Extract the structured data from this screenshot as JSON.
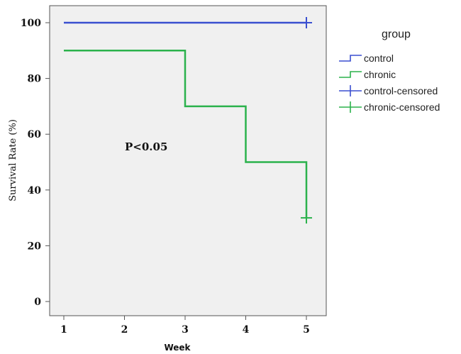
{
  "chart_data": {
    "type": "line",
    "subtype": "kaplan-meier",
    "title": "",
    "xlabel": "Week",
    "ylabel": "Survival Rate (%)",
    "xlim": [
      1,
      5
    ],
    "ylim": [
      0,
      100
    ],
    "x_ticks": [
      "1",
      "2",
      "3",
      "4",
      "5"
    ],
    "y_ticks": [
      "0",
      "20",
      "40",
      "60",
      "80",
      "100"
    ],
    "grid": false,
    "legend_position": "right",
    "legend_title": "group",
    "legend_items": [
      "control",
      "chronic",
      "control-censored",
      "chronic-censored"
    ],
    "annotation": "P<0.05",
    "colors": {
      "control": "#3a4fd0",
      "chronic": "#2bb24c",
      "plot_bg": "#f0f0f0"
    },
    "series": [
      {
        "name": "control",
        "steps": [
          [
            1,
            100
          ],
          [
            5,
            100
          ]
        ],
        "censored": [
          [
            5,
            100
          ]
        ]
      },
      {
        "name": "chronic",
        "steps": [
          [
            1,
            90
          ],
          [
            3,
            90
          ],
          [
            3,
            70
          ],
          [
            4,
            70
          ],
          [
            4,
            50
          ],
          [
            5,
            50
          ],
          [
            5,
            30
          ]
        ],
        "censored": [
          [
            5,
            30
          ]
        ]
      }
    ]
  }
}
